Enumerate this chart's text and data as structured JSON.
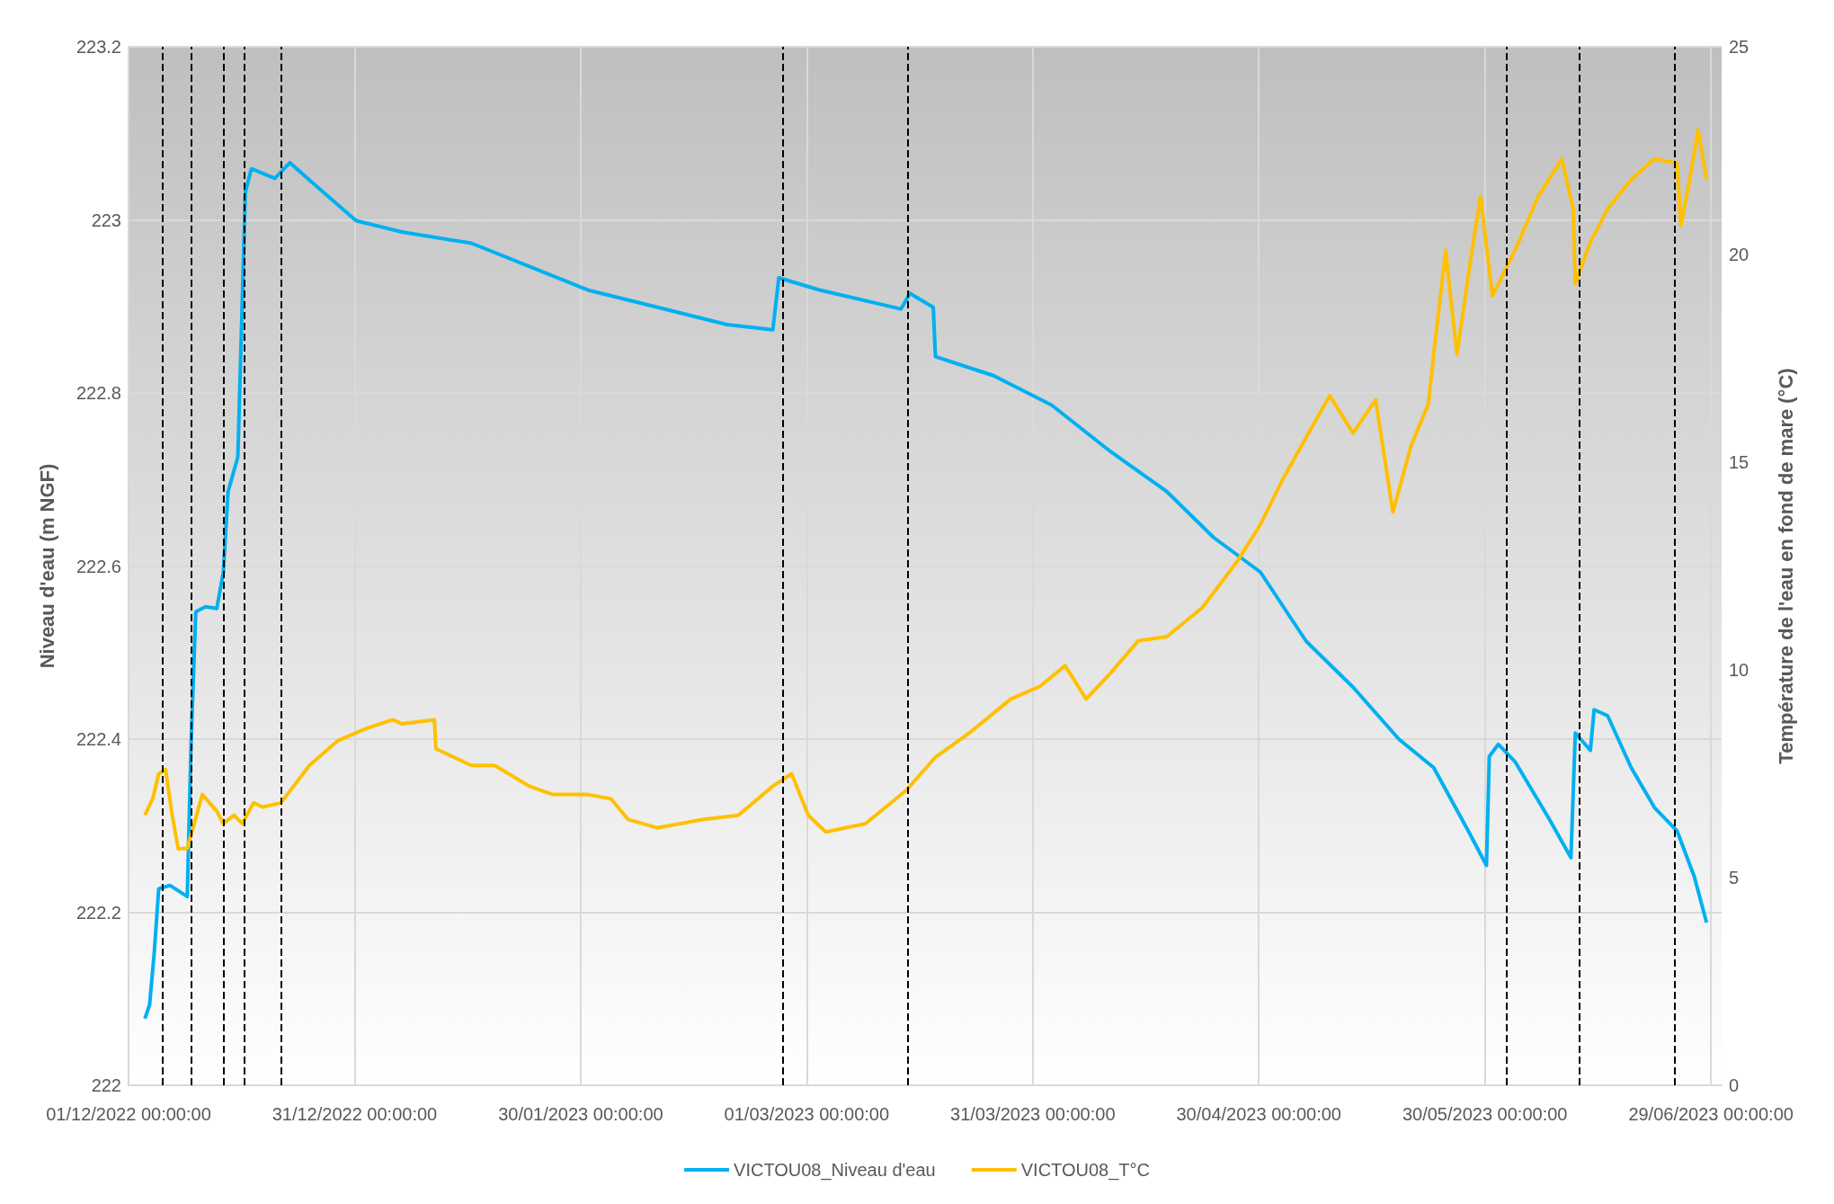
{
  "chart_data": {
    "type": "line",
    "ylabel": "Niveau d'eau (m NGF)",
    "y2label": "Température de l'eau en fond de mare (°C)",
    "xlim": [
      "2022-12-01",
      "2023-06-30T10:00"
    ],
    "xticks": [
      {
        "value": "2022-12-01",
        "label": "01/12/2022 00:00:00"
      },
      {
        "value": "2022-12-31",
        "label": "31/12/2022 00:00:00"
      },
      {
        "value": "2023-01-30",
        "label": "30/01/2023 00:00:00"
      },
      {
        "value": "2023-03-01",
        "label": "01/03/2023 00:00:00"
      },
      {
        "value": "2023-03-31",
        "label": "31/03/2023 00:00:00"
      },
      {
        "value": "2023-04-30",
        "label": "30/04/2023 00:00:00"
      },
      {
        "value": "2023-05-30",
        "label": "30/05/2023 00:00:00"
      },
      {
        "value": "2023-06-29",
        "label": "29/06/2023 00:00:00"
      }
    ],
    "ylim": [
      222,
      223.2
    ],
    "yticks": [
      222,
      222.2,
      222.4,
      222.6,
      222.8,
      223,
      223.2
    ],
    "y2lim": [
      0,
      25
    ],
    "y2ticks": [
      0,
      5,
      10,
      15,
      20,
      25
    ],
    "grid": true,
    "legend": "bottom",
    "marker": "none",
    "series": [
      {
        "name": "VICTOU08_Niveau d'eau",
        "color": "#00b0f0",
        "x": [
          "2022-12-03T04:00",
          "2022-12-03T19:00",
          "2022-12-04T10:00",
          "2022-12-05T00:00",
          "2022-12-06T12:00",
          "2022-12-08T19:00",
          "2022-12-09T07:00",
          "2022-12-09T22:00",
          "2022-12-11T05:00",
          "2022-12-12T17:00",
          "2022-12-13T14:00",
          "2022-12-14T05:00",
          "2022-12-15T12:00",
          "2022-12-16T12:00",
          "2022-12-17T07:00",
          "2022-12-20T10:00",
          "2022-12-22T10:00",
          "2022-12-25T00:00",
          "2022-12-31T05:00",
          "2023-01-06T07:00",
          "2023-01-15T12:00",
          "2023-01-23T05:00",
          "2023-01-30T22:00",
          "2023-02-09T05:00",
          "2023-02-18T10:00",
          "2023-02-24T12:00",
          "2023-02-25T07:00",
          "2023-03-02T17:00",
          "2023-03-13T12:00",
          "2023-03-14T17:00",
          "2023-03-17T19:00",
          "2023-03-18T02:00",
          "2023-03-25T19:00",
          "2023-04-02T12:00",
          "2023-04-10T05:00",
          "2023-04-17T19:00",
          "2023-04-24T00:00",
          "2023-04-30T05:00",
          "2023-05-06T07:00",
          "2023-05-12T12:00",
          "2023-05-18T14:00",
          "2023-05-23T05:00",
          "2023-05-27T19:00",
          "2023-05-30T05:00",
          "2023-05-30T14:00",
          "2023-05-31T19:00",
          "2023-06-03T00:00",
          "2023-06-07T14:00",
          "2023-06-10T10:00",
          "2023-06-11T00:00",
          "2023-06-13T00:00",
          "2023-06-13T12:00",
          "2023-06-15T07:00",
          "2023-06-18T10:00",
          "2023-06-21T12:00",
          "2023-06-24T12:00",
          "2023-06-26T19:00",
          "2023-06-28T10:00"
        ],
        "values": [
          222.077,
          222.093,
          222.154,
          222.227,
          222.231,
          222.218,
          222.394,
          222.547,
          222.553,
          222.551,
          222.593,
          222.686,
          222.726,
          223.032,
          223.059,
          223.048,
          223.066,
          223.046,
          222.999,
          222.986,
          222.973,
          222.946,
          222.919,
          222.899,
          222.879,
          222.873,
          222.933,
          222.919,
          222.897,
          222.915,
          222.899,
          222.842,
          222.82,
          222.786,
          222.733,
          222.686,
          222.633,
          222.593,
          222.513,
          222.46,
          222.4,
          222.367,
          222.294,
          222.254,
          222.38,
          222.394,
          222.374,
          222.307,
          222.263,
          222.407,
          222.387,
          222.434,
          222.427,
          222.367,
          222.321,
          222.294,
          222.241,
          222.188
        ]
      },
      {
        "name": "VICTOU08_T°C",
        "color": "#ffc000",
        "axis": "y2",
        "x": [
          "2022-12-03T04:00",
          "2022-12-04T05:00",
          "2022-12-05T00:00",
          "2022-12-05T22:00",
          "2022-12-06T19:00",
          "2022-12-07T14:00",
          "2022-12-08T19:00",
          "2022-12-10T19:00",
          "2022-12-12T17:00",
          "2022-12-13T14:00",
          "2022-12-15T00:00",
          "2022-12-16T02:00",
          "2022-12-17T14:00",
          "2022-12-18T19:00",
          "2022-12-21T05:00",
          "2022-12-25T00:00",
          "2022-12-28T19:00",
          "2023-01-01T17:00",
          "2023-01-05T02:00",
          "2023-01-06T07:00",
          "2023-01-10T14:00",
          "2023-01-10T19:00",
          "2023-01-15T12:00",
          "2023-01-18T14:00",
          "2023-01-23T05:00",
          "2023-01-26T07:00",
          "2023-01-30T22:00",
          "2023-02-03T00:00",
          "2023-02-05T07:00",
          "2023-02-09T05:00",
          "2023-02-15T07:00",
          "2023-02-19T22:00",
          "2023-02-24T12:00",
          "2023-02-27T00:00",
          "2023-03-01T05:00",
          "2023-03-03T12:00",
          "2023-03-08T19:00",
          "2023-03-14T05:00",
          "2023-03-18T02:00",
          "2023-03-22T17:00",
          "2023-03-28T02:00",
          "2023-03-31T22:00",
          "2023-04-04T07:00",
          "2023-04-07T02:00",
          "2023-04-10T05:00",
          "2023-04-14T00:00",
          "2023-04-17T19:00",
          "2023-04-22T12:00",
          "2023-04-27T02:00",
          "2023-04-30T05:00",
          "2023-05-03T05:00",
          "2023-05-06T07:00",
          "2023-05-09T10:00",
          "2023-05-12T12:00",
          "2023-05-15T12:00",
          "2023-05-17T19:00",
          "2023-05-20T05:00",
          "2023-05-22T12:00",
          "2023-05-23T05:00",
          "2023-05-24T19:00",
          "2023-05-26T07:00",
          "2023-05-28T05:00",
          "2023-05-29T10:00",
          "2023-05-31T00:00",
          "2023-06-03T00:00",
          "2023-06-06T02:00",
          "2023-06-09T05:00",
          "2023-06-10T17:00",
          "2023-06-11T00:00",
          "2023-06-13T00:00",
          "2023-06-15T07:00",
          "2023-06-18T10:00",
          "2023-06-21T12:00",
          "2023-06-24T12:00",
          "2023-06-25T00:00",
          "2023-06-26T02:00",
          "2023-06-27T07:00",
          "2023-06-28T10:00"
        ],
        "values": [
          6.5,
          6.9,
          7.5,
          7.6,
          6.5,
          5.7,
          5.7,
          7.0,
          6.6,
          6.3,
          6.5,
          6.3,
          6.8,
          6.7,
          6.8,
          7.7,
          8.3,
          8.6,
          8.8,
          8.7,
          8.8,
          8.1,
          7.7,
          7.7,
          7.2,
          7.0,
          7.0,
          6.9,
          6.4,
          6.2,
          6.4,
          6.5,
          7.2,
          7.5,
          6.5,
          6.1,
          6.3,
          7.1,
          7.9,
          8.5,
          9.3,
          9.6,
          10.1,
          9.3,
          9.9,
          10.7,
          10.8,
          11.5,
          12.6,
          13.5,
          14.6,
          15.6,
          16.6,
          15.7,
          16.5,
          13.8,
          15.4,
          16.4,
          17.6,
          20.1,
          17.6,
          20.0,
          21.4,
          19.0,
          20.1,
          21.4,
          22.3,
          21.1,
          19.3,
          20.3,
          21.1,
          21.8,
          22.3,
          22.2,
          20.7,
          21.7,
          23.0,
          21.8
        ]
      }
    ],
    "ref_lines": [
      {
        "axis": "x",
        "value": "2022-12-05T11:00",
        "color": "#000000",
        "line_style": "dashed"
      },
      {
        "axis": "x",
        "value": "2022-12-09T07:00",
        "color": "#000000",
        "line_style": "dashed"
      },
      {
        "axis": "x",
        "value": "2022-12-13T14:00",
        "color": "#000000",
        "line_style": "dashed"
      },
      {
        "axis": "x",
        "value": "2022-12-16T10:00",
        "color": "#000000",
        "line_style": "dashed"
      },
      {
        "axis": "x",
        "value": "2022-12-21T07:00",
        "color": "#000000",
        "line_style": "dashed"
      },
      {
        "axis": "x",
        "value": "2023-02-25T19:00",
        "color": "#000000",
        "line_style": "dashed"
      },
      {
        "axis": "x",
        "value": "2023-03-14T10:00",
        "color": "#000000",
        "line_style": "dashed"
      },
      {
        "axis": "x",
        "value": "2023-06-01T22:00",
        "color": "#000000",
        "line_style": "dashed"
      },
      {
        "axis": "x",
        "value": "2023-06-11T14:00",
        "color": "#000000",
        "line_style": "dashed"
      },
      {
        "axis": "x",
        "value": "2023-06-24T05:00",
        "color": "#000000",
        "line_style": "dashed"
      }
    ]
  }
}
